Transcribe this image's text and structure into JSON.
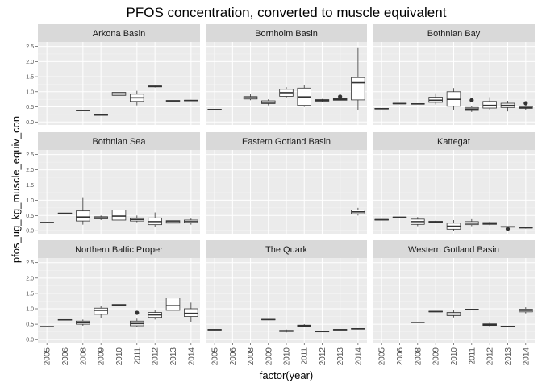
{
  "chart_data": {
    "type": "boxplot",
    "title": "PFOS concentration, converted to muscle equivalent",
    "xlabel": "factor(year)",
    "ylabel": "pfos_ug_kg_muscle_equiv_con",
    "years": [
      "2005",
      "2006",
      "2008",
      "2009",
      "2010",
      "2011",
      "2012",
      "2013",
      "2014"
    ],
    "y_ticks": [
      "0.0",
      "0.5",
      "1.0",
      "1.5",
      "2.0",
      "2.5"
    ],
    "ylim": [
      -0.1,
      2.65
    ],
    "colors": {
      "panel_background": "#ebebeb",
      "strip_background": "#d9d9d9",
      "grid_major": "#ffffff",
      "grid_minor": "#f5f5f5",
      "box_fill": "#ffffff",
      "box_line": "#333333"
    },
    "panels": [
      {
        "name": "Arkona Basin",
        "boxes": [
          {
            "year": "2008",
            "stats": [
              0.36,
              0.37,
              0.38,
              0.39,
              0.4
            ]
          },
          {
            "year": "2009",
            "stats": [
              0.21,
              0.22,
              0.23,
              0.24,
              0.25
            ]
          },
          {
            "year": "2010",
            "stats": [
              0.85,
              0.88,
              0.93,
              0.98,
              1.02
            ]
          },
          {
            "year": "2011",
            "stats": [
              0.55,
              0.68,
              0.8,
              0.92,
              1.03
            ]
          },
          {
            "year": "2012",
            "stats": [
              1.14,
              1.16,
              1.18,
              1.19,
              1.2
            ]
          },
          {
            "year": "2013",
            "stats": [
              0.68,
              0.69,
              0.7,
              0.71,
              0.72
            ]
          },
          {
            "year": "2014",
            "stats": [
              0.69,
              0.7,
              0.71,
              0.72,
              0.73
            ]
          }
        ]
      },
      {
        "name": "Bornholm Basin",
        "boxes": [
          {
            "year": "2005",
            "stats": [
              0.39,
              0.4,
              0.41,
              0.42,
              0.43
            ]
          },
          {
            "year": "2008",
            "stats": [
              0.72,
              0.76,
              0.8,
              0.84,
              0.92
            ]
          },
          {
            "year": "2009",
            "stats": [
              0.55,
              0.61,
              0.65,
              0.7,
              0.75
            ]
          },
          {
            "year": "2010",
            "stats": [
              0.8,
              0.85,
              0.97,
              1.08,
              1.15
            ]
          },
          {
            "year": "2011",
            "stats": [
              0.5,
              0.55,
              0.83,
              1.12,
              1.22
            ]
          },
          {
            "year": "2012",
            "stats": [
              0.66,
              0.69,
              0.72,
              0.74,
              0.76
            ]
          },
          {
            "year": "2013",
            "stats": [
              0.7,
              0.72,
              0.75,
              0.77,
              0.8
            ],
            "outliers": [
              0.84
            ]
          },
          {
            "year": "2014",
            "stats": [
              0.38,
              0.73,
              1.3,
              1.47,
              2.47
            ]
          }
        ]
      },
      {
        "name": "Bothnian Bay",
        "boxes": [
          {
            "year": "2005",
            "stats": [
              0.42,
              0.43,
              0.44,
              0.45,
              0.46
            ]
          },
          {
            "year": "2006",
            "stats": [
              0.59,
              0.6,
              0.61,
              0.62,
              0.63
            ]
          },
          {
            "year": "2008",
            "stats": [
              0.58,
              0.59,
              0.6,
              0.61,
              0.62
            ]
          },
          {
            "year": "2009",
            "stats": [
              0.58,
              0.65,
              0.72,
              0.82,
              0.95
            ]
          },
          {
            "year": "2010",
            "stats": [
              0.4,
              0.52,
              0.75,
              1.0,
              1.12
            ]
          },
          {
            "year": "2011",
            "stats": [
              0.33,
              0.38,
              0.43,
              0.48,
              0.52
            ],
            "outliers": [
              0.72
            ]
          },
          {
            "year": "2012",
            "stats": [
              0.4,
              0.46,
              0.55,
              0.68,
              0.82
            ]
          },
          {
            "year": "2013",
            "stats": [
              0.35,
              0.48,
              0.55,
              0.62,
              0.7
            ]
          },
          {
            "year": "2014",
            "stats": [
              0.4,
              0.45,
              0.48,
              0.52,
              0.55
            ],
            "outliers": [
              0.62
            ]
          }
        ]
      },
      {
        "name": "Bothnian Sea",
        "boxes": [
          {
            "year": "2005",
            "stats": [
              0.25,
              0.26,
              0.27,
              0.28,
              0.29
            ]
          },
          {
            "year": "2006",
            "stats": [
              0.55,
              0.56,
              0.57,
              0.58,
              0.59
            ]
          },
          {
            "year": "2008",
            "stats": [
              0.2,
              0.32,
              0.45,
              0.65,
              1.1
            ]
          },
          {
            "year": "2009",
            "stats": [
              0.35,
              0.39,
              0.42,
              0.46,
              0.5
            ]
          },
          {
            "year": "2010",
            "stats": [
              0.25,
              0.35,
              0.48,
              0.68,
              0.9
            ]
          },
          {
            "year": "2011",
            "stats": [
              0.28,
              0.32,
              0.37,
              0.42,
              0.5
            ]
          },
          {
            "year": "2012",
            "stats": [
              0.12,
              0.2,
              0.3,
              0.42,
              0.6
            ]
          },
          {
            "year": "2013",
            "stats": [
              0.2,
              0.25,
              0.3,
              0.33,
              0.37
            ]
          },
          {
            "year": "2014",
            "stats": [
              0.2,
              0.26,
              0.3,
              0.35,
              0.4
            ]
          }
        ]
      },
      {
        "name": "Eastern Gotland Basin",
        "boxes": [
          {
            "year": "2014",
            "stats": [
              0.5,
              0.56,
              0.62,
              0.68,
              0.75
            ]
          }
        ]
      },
      {
        "name": "Kattegat",
        "boxes": [
          {
            "year": "2005",
            "stats": [
              0.34,
              0.35,
              0.36,
              0.37,
              0.38
            ]
          },
          {
            "year": "2006",
            "stats": [
              0.42,
              0.43,
              0.44,
              0.45,
              0.46
            ]
          },
          {
            "year": "2008",
            "stats": [
              0.15,
              0.21,
              0.3,
              0.38,
              0.45
            ]
          },
          {
            "year": "2009",
            "stats": [
              0.25,
              0.27,
              0.29,
              0.31,
              0.33
            ]
          },
          {
            "year": "2010",
            "stats": [
              0.0,
              0.05,
              0.15,
              0.25,
              0.35
            ]
          },
          {
            "year": "2011",
            "stats": [
              0.15,
              0.2,
              0.25,
              0.3,
              0.38
            ]
          },
          {
            "year": "2012",
            "stats": [
              0.18,
              0.21,
              0.24,
              0.27,
              0.3
            ]
          },
          {
            "year": "2013",
            "stats": [
              0.1,
              0.12,
              0.13,
              0.14,
              0.15
            ],
            "outliers": [
              0.06
            ]
          },
          {
            "year": "2014",
            "stats": [
              0.07,
              0.09,
              0.1,
              0.11,
              0.12
            ]
          }
        ]
      },
      {
        "name": "Northern Baltic Proper",
        "boxes": [
          {
            "year": "2005",
            "stats": [
              0.4,
              0.41,
              0.42,
              0.43,
              0.44
            ]
          },
          {
            "year": "2006",
            "stats": [
              0.62,
              0.63,
              0.64,
              0.65,
              0.66
            ]
          },
          {
            "year": "2008",
            "stats": [
              0.45,
              0.5,
              0.55,
              0.6,
              0.65
            ]
          },
          {
            "year": "2009",
            "stats": [
              0.7,
              0.82,
              0.95,
              1.02,
              1.1
            ]
          },
          {
            "year": "2010",
            "stats": [
              1.08,
              1.1,
              1.12,
              1.14,
              1.16
            ]
          },
          {
            "year": "2011",
            "stats": [
              0.4,
              0.45,
              0.52,
              0.6,
              0.68
            ],
            "outliers": [
              0.87
            ]
          },
          {
            "year": "2012",
            "stats": [
              0.65,
              0.72,
              0.8,
              0.88,
              0.95
            ]
          },
          {
            "year": "2013",
            "stats": [
              0.8,
              0.95,
              1.1,
              1.35,
              1.78
            ]
          },
          {
            "year": "2014",
            "stats": [
              0.58,
              0.75,
              0.85,
              1.0,
              1.2
            ]
          }
        ]
      },
      {
        "name": "The Quark",
        "boxes": [
          {
            "year": "2005",
            "stats": [
              0.3,
              0.31,
              0.32,
              0.33,
              0.34
            ]
          },
          {
            "year": "2009",
            "stats": [
              0.63,
              0.64,
              0.65,
              0.66,
              0.67
            ]
          },
          {
            "year": "2010",
            "stats": [
              0.23,
              0.26,
              0.28,
              0.3,
              0.33
            ]
          },
          {
            "year": "2011",
            "stats": [
              0.4,
              0.43,
              0.45,
              0.47,
              0.5
            ]
          },
          {
            "year": "2012",
            "stats": [
              0.24,
              0.25,
              0.26,
              0.27,
              0.28
            ]
          },
          {
            "year": "2013",
            "stats": [
              0.3,
              0.31,
              0.32,
              0.33,
              0.34
            ]
          },
          {
            "year": "2014",
            "stats": [
              0.33,
              0.34,
              0.35,
              0.36,
              0.37
            ]
          }
        ]
      },
      {
        "name": "Western Gotland Basin",
        "boxes": [
          {
            "year": "2008",
            "stats": [
              0.54,
              0.55,
              0.56,
              0.57,
              0.58
            ]
          },
          {
            "year": "2009",
            "stats": [
              0.89,
              0.9,
              0.91,
              0.92,
              0.93
            ]
          },
          {
            "year": "2010",
            "stats": [
              0.72,
              0.78,
              0.83,
              0.88,
              0.95
            ]
          },
          {
            "year": "2011",
            "stats": [
              0.95,
              0.96,
              0.97,
              0.99,
              1.0
            ]
          },
          {
            "year": "2012",
            "stats": [
              0.42,
              0.46,
              0.48,
              0.51,
              0.55
            ]
          },
          {
            "year": "2013",
            "stats": [
              0.41,
              0.42,
              0.43,
              0.44,
              0.45
            ]
          },
          {
            "year": "2014",
            "stats": [
              0.85,
              0.9,
              0.95,
              0.99,
              1.05
            ]
          }
        ]
      }
    ]
  }
}
